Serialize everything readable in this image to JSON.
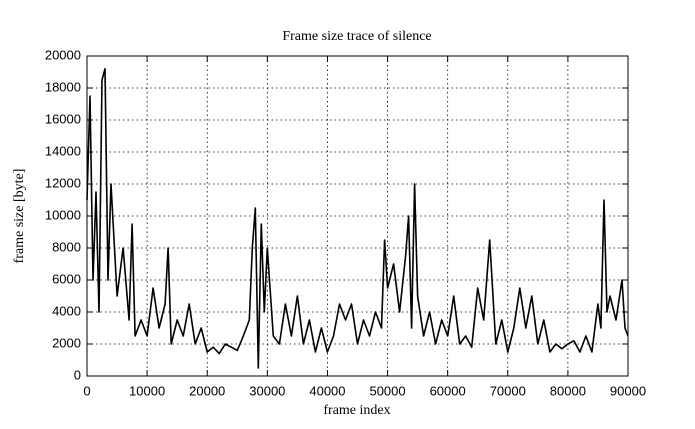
{
  "chart_data": {
    "type": "line",
    "title": "Frame size trace of silence",
    "xlabel": "frame index",
    "ylabel": "frame size [byte]",
    "color": "#000000",
    "grid": true,
    "xlim": [
      0,
      90000
    ],
    "ylim": [
      0,
      20000
    ],
    "xticks": [
      0,
      10000,
      20000,
      30000,
      40000,
      50000,
      60000,
      70000,
      80000,
      90000
    ],
    "yticks": [
      0,
      2000,
      4000,
      6000,
      8000,
      10000,
      12000,
      14000,
      16000,
      18000,
      20000
    ],
    "x": [
      0,
      500,
      1000,
      1500,
      2000,
      2500,
      3000,
      3500,
      4000,
      5000,
      6000,
      7000,
      7500,
      8000,
      9000,
      10000,
      11000,
      12000,
      13000,
      13500,
      14000,
      15000,
      16000,
      17000,
      18000,
      19000,
      20000,
      21000,
      22000,
      23000,
      24000,
      25000,
      26000,
      27000,
      27500,
      28000,
      28500,
      29000,
      29500,
      30000,
      31000,
      32000,
      33000,
      34000,
      35000,
      36000,
      37000,
      38000,
      39000,
      40000,
      41000,
      42000,
      43000,
      44000,
      45000,
      46000,
      47000,
      48000,
      49000,
      49500,
      50000,
      51000,
      52000,
      53000,
      53500,
      54000,
      54500,
      55000,
      56000,
      57000,
      58000,
      59000,
      60000,
      61000,
      62000,
      63000,
      64000,
      65000,
      66000,
      67000,
      68000,
      69000,
      70000,
      71000,
      72000,
      73000,
      74000,
      75000,
      76000,
      77000,
      78000,
      79000,
      80000,
      81000,
      82000,
      83000,
      84000,
      85000,
      85500,
      86000,
      86500,
      87000,
      88000,
      89000,
      89500,
      90000
    ],
    "values": [
      11000,
      17500,
      6000,
      11500,
      4000,
      18500,
      19200,
      6000,
      12000,
      5000,
      8000,
      3500,
      9500,
      2500,
      3500,
      2500,
      5500,
      3000,
      4500,
      8000,
      2000,
      3500,
      2500,
      4500,
      2000,
      3000,
      1500,
      1800,
      1400,
      2000,
      1800,
      1600,
      2500,
      3500,
      8000,
      10500,
      500,
      9500,
      4000,
      8000,
      2500,
      2000,
      4500,
      2500,
      5000,
      2000,
      3500,
      1500,
      3000,
      1500,
      2500,
      4500,
      3500,
      4500,
      2000,
      3500,
      2500,
      4000,
      3000,
      8500,
      5500,
      7000,
      4000,
      7500,
      10000,
      3000,
      12000,
      5000,
      2500,
      4000,
      2000,
      3500,
      2500,
      5000,
      2000,
      2500,
      1800,
      5500,
      3500,
      8500,
      2000,
      3500,
      1500,
      3000,
      5500,
      3000,
      5000,
      2000,
      3500,
      1500,
      2000,
      1700,
      2000,
      2200,
      1500,
      2500,
      1500,
      4500,
      3000,
      11000,
      4000,
      5000,
      3500,
      6000,
      3000,
      2500
    ]
  }
}
